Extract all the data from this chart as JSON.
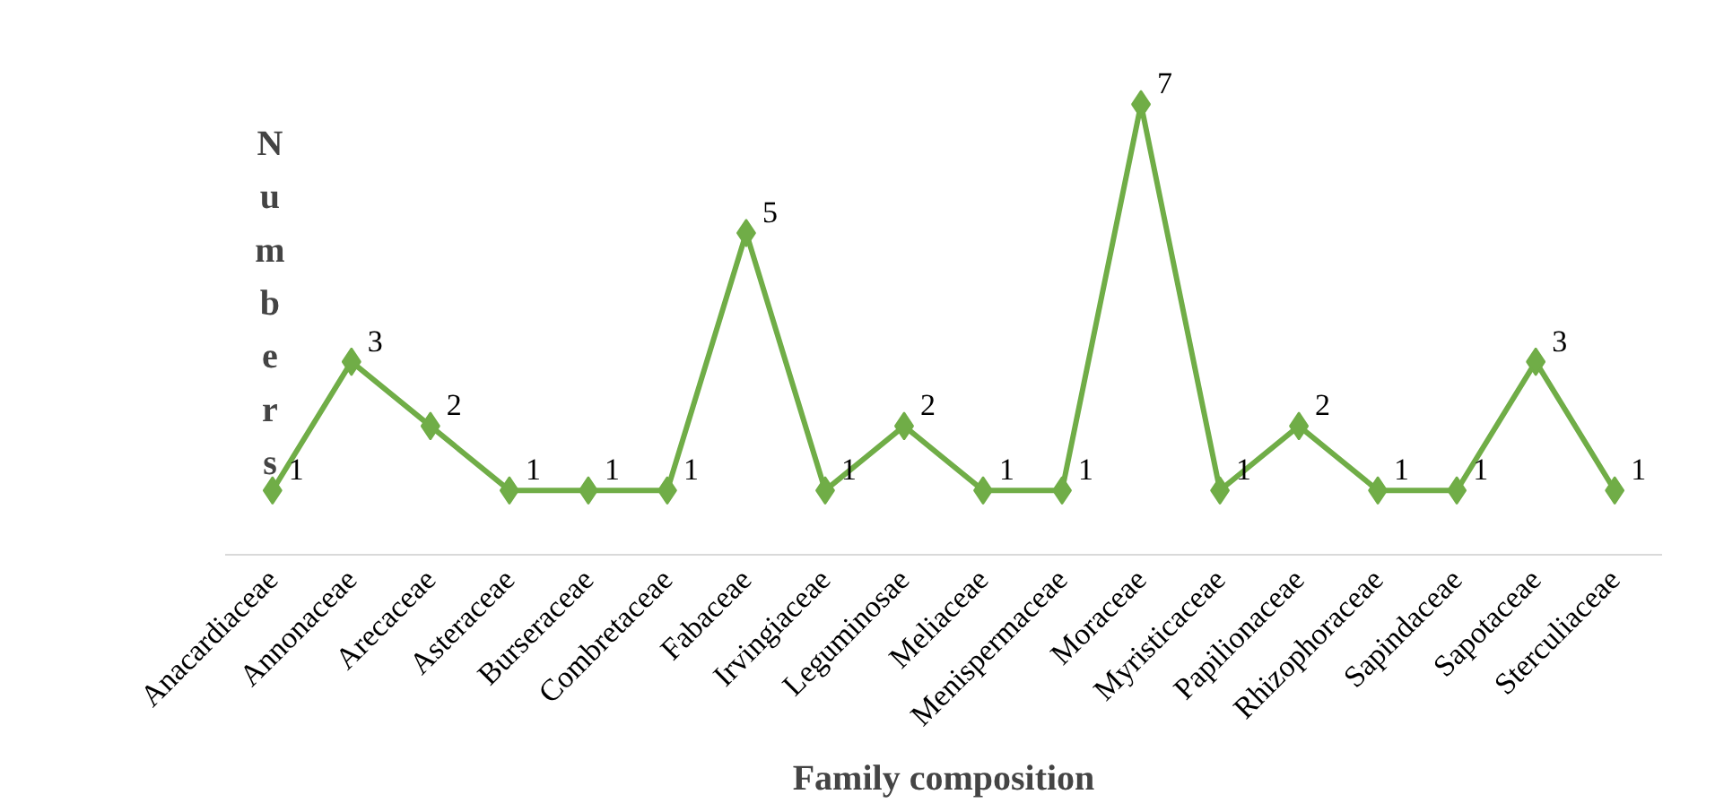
{
  "chart_data": {
    "type": "line",
    "xlabel": "Family composition",
    "ylabel": "Numbers",
    "categories": [
      "Anacardiaceae",
      "Annonaceae",
      "Arecaceae",
      "Asteraceae",
      "Burseraceae",
      "Combretaceae",
      "Fabaceae",
      "Irvingiaceae",
      "Leguminosae",
      "Meliaceae",
      "Menispermaceae",
      "Moraceae",
      "Myristicaceae",
      "Papilionaceae",
      "Rhizophoraceae",
      "Sapindaceae",
      "Sapotaceae",
      "Sterculiaceae"
    ],
    "series": [
      {
        "color": "#70ad47",
        "values": [
          1,
          3,
          2,
          1,
          1,
          1,
          5,
          1,
          2,
          1,
          1,
          7,
          1,
          2,
          1,
          1,
          3,
          1
        ]
      }
    ],
    "tick_labels": "x",
    "grid": false,
    "data_labels": true,
    "marker": "diamond",
    "line_style": "solid"
  }
}
